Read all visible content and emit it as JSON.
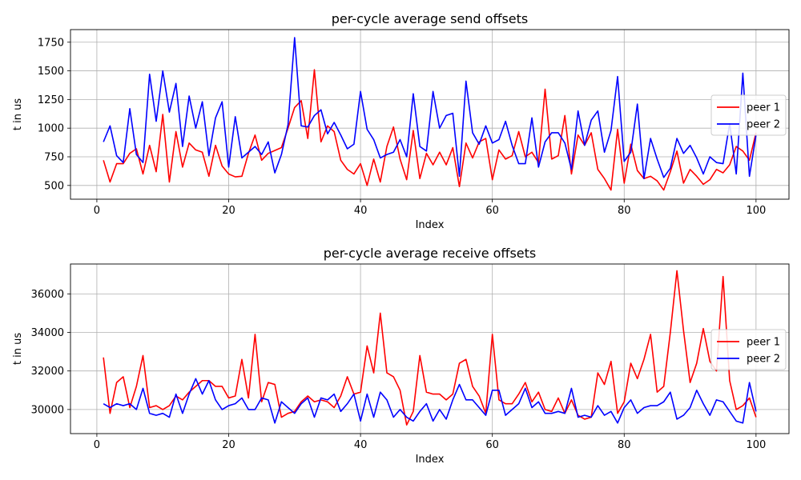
{
  "chart_data": [
    {
      "type": "line",
      "title": "per-cycle average send offsets",
      "xlabel": "Index",
      "ylabel": "t in us",
      "xlim": [
        -4,
        105
      ],
      "ylim": [
        380,
        1860
      ],
      "xticks": [
        0,
        20,
        40,
        60,
        80,
        100
      ],
      "yticks": [
        500,
        750,
        1000,
        1250,
        1500,
        1750
      ],
      "grid": true,
      "legend_position": "right",
      "x": [
        1,
        2,
        3,
        4,
        5,
        6,
        7,
        8,
        9,
        10,
        11,
        12,
        13,
        14,
        15,
        16,
        17,
        18,
        19,
        20,
        21,
        22,
        23,
        24,
        25,
        26,
        27,
        28,
        29,
        30,
        31,
        32,
        33,
        34,
        35,
        36,
        37,
        38,
        39,
        40,
        41,
        42,
        43,
        44,
        45,
        46,
        47,
        48,
        49,
        50,
        51,
        52,
        53,
        54,
        55,
        56,
        57,
        58,
        59,
        60,
        61,
        62,
        63,
        64,
        65,
        66,
        67,
        68,
        69,
        70,
        71,
        72,
        73,
        74,
        75,
        76,
        77,
        78,
        79,
        80,
        81,
        82,
        83,
        84,
        85,
        86,
        87,
        88,
        89,
        90,
        91,
        92,
        93,
        94,
        95,
        96,
        97,
        98,
        99,
        100
      ],
      "series": [
        {
          "name": "peer 1",
          "color": "#ff0000",
          "values": [
            720,
            530,
            690,
            690,
            780,
            820,
            600,
            850,
            620,
            1120,
            530,
            970,
            660,
            870,
            810,
            790,
            580,
            850,
            670,
            600,
            575,
            580,
            780,
            940,
            720,
            780,
            805,
            830,
            1000,
            1180,
            1240,
            910,
            1510,
            880,
            1020,
            970,
            720,
            640,
            600,
            690,
            500,
            730,
            530,
            840,
            1010,
            730,
            550,
            980,
            560,
            780,
            680,
            790,
            680,
            830,
            490,
            870,
            740,
            880,
            910,
            550,
            810,
            730,
            760,
            970,
            750,
            790,
            700,
            1340,
            730,
            760,
            1110,
            600,
            940,
            850,
            960,
            640,
            560,
            460,
            990,
            520,
            860,
            630,
            560,
            580,
            540,
            460,
            620,
            800,
            520,
            640,
            580,
            510,
            550,
            640,
            610,
            680,
            840,
            800,
            720,
            960
          ]
        },
        {
          "name": "peer 2",
          "color": "#0000ff",
          "values": [
            880,
            1020,
            760,
            700,
            1170,
            770,
            700,
            1470,
            1060,
            1500,
            1140,
            1390,
            840,
            1280,
            1000,
            1230,
            760,
            1090,
            1230,
            660,
            1100,
            740,
            790,
            840,
            770,
            880,
            610,
            770,
            1030,
            1790,
            1020,
            1010,
            1110,
            1160,
            950,
            1050,
            940,
            820,
            860,
            1320,
            990,
            900,
            740,
            770,
            790,
            900,
            750,
            1300,
            840,
            800,
            1320,
            1000,
            1110,
            1130,
            580,
            1410,
            960,
            860,
            1020,
            870,
            900,
            1060,
            850,
            690,
            690,
            1090,
            660,
            880,
            960,
            960,
            870,
            640,
            1150,
            850,
            1070,
            1150,
            790,
            980,
            1450,
            710,
            790,
            1210,
            560,
            910,
            730,
            570,
            650,
            910,
            780,
            850,
            740,
            600,
            750,
            700,
            690,
            1040,
            600,
            1480,
            580,
            940
          ]
        }
      ]
    },
    {
      "type": "line",
      "title": "per-cycle average receive offsets",
      "xlabel": "Index",
      "ylabel": "t in us",
      "xlim": [
        -4,
        105
      ],
      "ylim": [
        28750,
        37550
      ],
      "xticks": [
        0,
        20,
        40,
        60,
        80,
        100
      ],
      "yticks": [
        30000,
        32000,
        34000,
        36000
      ],
      "grid": true,
      "legend_position": "right",
      "x": [
        1,
        2,
        3,
        4,
        5,
        6,
        7,
        8,
        9,
        10,
        11,
        12,
        13,
        14,
        15,
        16,
        17,
        18,
        19,
        20,
        21,
        22,
        23,
        24,
        25,
        26,
        27,
        28,
        29,
        30,
        31,
        32,
        33,
        34,
        35,
        36,
        37,
        38,
        39,
        40,
        41,
        42,
        43,
        44,
        45,
        46,
        47,
        48,
        49,
        50,
        51,
        52,
        53,
        54,
        55,
        56,
        57,
        58,
        59,
        60,
        61,
        62,
        63,
        64,
        65,
        66,
        67,
        68,
        69,
        70,
        71,
        72,
        73,
        74,
        75,
        76,
        77,
        78,
        79,
        80,
        81,
        82,
        83,
        84,
        85,
        86,
        87,
        88,
        89,
        90,
        91,
        92,
        93,
        94,
        95,
        96,
        97,
        98,
        99,
        100
      ],
      "series": [
        {
          "name": "peer 1",
          "color": "#ff0000",
          "values": [
            32700,
            29800,
            31400,
            31700,
            30100,
            31200,
            32800,
            30100,
            30200,
            30000,
            30200,
            30700,
            30500,
            30900,
            31200,
            31500,
            31500,
            31200,
            31200,
            30600,
            30700,
            32600,
            30600,
            33900,
            30400,
            31400,
            31300,
            29600,
            29800,
            29900,
            30400,
            30700,
            30400,
            30500,
            30400,
            30100,
            30700,
            31700,
            30800,
            30900,
            33300,
            31900,
            35000,
            31900,
            31700,
            31000,
            29200,
            29900,
            32800,
            30900,
            30800,
            30800,
            30500,
            30800,
            32400,
            32600,
            31200,
            30700,
            29800,
            33900,
            30500,
            30300,
            30300,
            30800,
            31400,
            30400,
            30900,
            30000,
            29900,
            30600,
            29800,
            30500,
            29700,
            29500,
            29600,
            31900,
            31300,
            32500,
            29800,
            30400,
            32400,
            31600,
            32600,
            33900,
            30900,
            31200,
            34000,
            37200,
            34100,
            31400,
            32400,
            34200,
            32500,
            32000,
            36900,
            31500,
            30000,
            30200,
            30600,
            29600
          ]
        },
        {
          "name": "peer 2",
          "color": "#0000ff",
          "values": [
            30300,
            30100,
            30300,
            30200,
            30300,
            30000,
            31100,
            29800,
            29700,
            29800,
            29600,
            30800,
            29800,
            30800,
            31600,
            30800,
            31500,
            30500,
            30000,
            30200,
            30300,
            30600,
            30000,
            30000,
            30600,
            30500,
            29300,
            30400,
            30100,
            29800,
            30300,
            30600,
            29600,
            30600,
            30500,
            30800,
            29900,
            30300,
            30800,
            29400,
            30800,
            29600,
            30900,
            30500,
            29600,
            30000,
            29600,
            29400,
            29900,
            30300,
            29400,
            30000,
            29500,
            30500,
            31300,
            30500,
            30500,
            30100,
            29700,
            31000,
            31000,
            29700,
            30000,
            30300,
            31100,
            30100,
            30400,
            29800,
            29800,
            29900,
            29800,
            31100,
            29600,
            29700,
            29600,
            30200,
            29700,
            29900,
            29300,
            30100,
            30500,
            29800,
            30100,
            30200,
            30200,
            30400,
            30900,
            29500,
            29700,
            30100,
            31000,
            30300,
            29700,
            30500,
            30400,
            29900,
            29400,
            29300,
            31400,
            29900
          ]
        }
      ]
    }
  ]
}
